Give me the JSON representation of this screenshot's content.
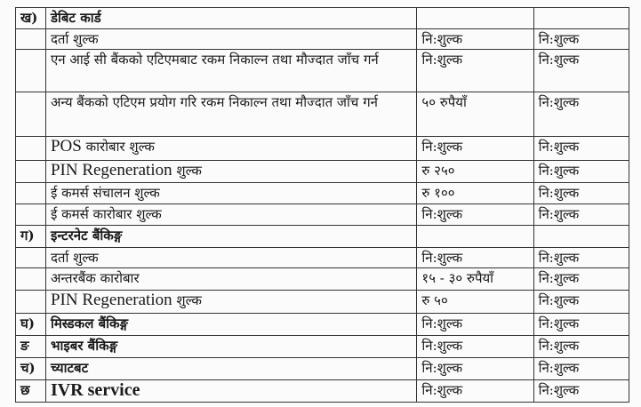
{
  "rows": [
    {
      "index": "ख)",
      "label": "डेबिट कार्ड",
      "fee1": "",
      "fee2": "",
      "kind": "section"
    },
    {
      "index": "",
      "label": "दर्ता शुल्क",
      "fee1": "नि:शुल्क",
      "fee2": "नि:शुल्क",
      "kind": "item"
    },
    {
      "index": "",
      "label": "एन आई सी बैंकको एटिएमबाट रकम निकाल्न तथा मौज्दात जाँच गर्न",
      "fee1": "नि:शुल्क",
      "fee2": "नि:शुल्क",
      "kind": "item"
    },
    {
      "index": "",
      "label": "अन्य बैंकको एटिएम प्रयोग गरि रकम निकाल्न तथा मौज्दात जाँच गर्न",
      "fee1": "५० रुपैयाँ",
      "fee2": "नि:शुल्क",
      "kind": "item"
    },
    {
      "index": "",
      "label_en": "POS",
      "label": "कारोबार शुल्क",
      "fee1": "नि:शुल्क",
      "fee2": "नि:शुल्क",
      "kind": "item-en"
    },
    {
      "index": "",
      "label_en": "PIN Regeneration",
      "label": "शुल्क",
      "fee1": "रु २५०",
      "fee2": "नि:शुल्क",
      "kind": "item-en"
    },
    {
      "index": "",
      "label": "ई कमर्स संचालन शुल्क",
      "fee1": "रु १००",
      "fee2": "नि:शुल्क",
      "kind": "item"
    },
    {
      "index": "",
      "label": "ई कमर्स कारोबार शुल्क",
      "fee1": "नि:शुल्क",
      "fee2": "नि:शुल्क",
      "kind": "item"
    },
    {
      "index": "ग)",
      "label": "इन्टरनेट बैंकिङ्ग",
      "fee1": "",
      "fee2": "",
      "kind": "section"
    },
    {
      "index": "",
      "label": "दर्ता शुल्क",
      "fee1": "नि:शुल्क",
      "fee2": "नि:शुल्क",
      "kind": "item"
    },
    {
      "index": "",
      "label": "अन्तरबैंक कारोबार",
      "fee1": "१५ - ३० रुपैयाँ",
      "fee2": "नि:शुल्क",
      "kind": "item"
    },
    {
      "index": "",
      "label_en": "PIN Regeneration",
      "label": "शुल्क",
      "fee1": "रु ५०",
      "fee2": "नि:शुल्क",
      "kind": "item-en"
    },
    {
      "index": "घ)",
      "label": "मिस्डकल बैंकिङ्ग",
      "fee1": "नि:शुल्क",
      "fee2": "नि:शुल्क",
      "kind": "section"
    },
    {
      "index": "ङ",
      "label": "भाइबर बैंकिङ्ग",
      "fee1": "नि:शुल्क",
      "fee2": "नि:शुल्क",
      "kind": "section"
    },
    {
      "index": "च)",
      "label": "च्याटबट",
      "fee1": "नि:शुल्क",
      "fee2": "नि:शुल्क",
      "kind": "section"
    },
    {
      "index": "छ",
      "label_en": "IVR service",
      "label": "",
      "fee1": "नि:शुल्क",
      "fee2": "नि:शुल्क",
      "kind": "section-en"
    }
  ]
}
